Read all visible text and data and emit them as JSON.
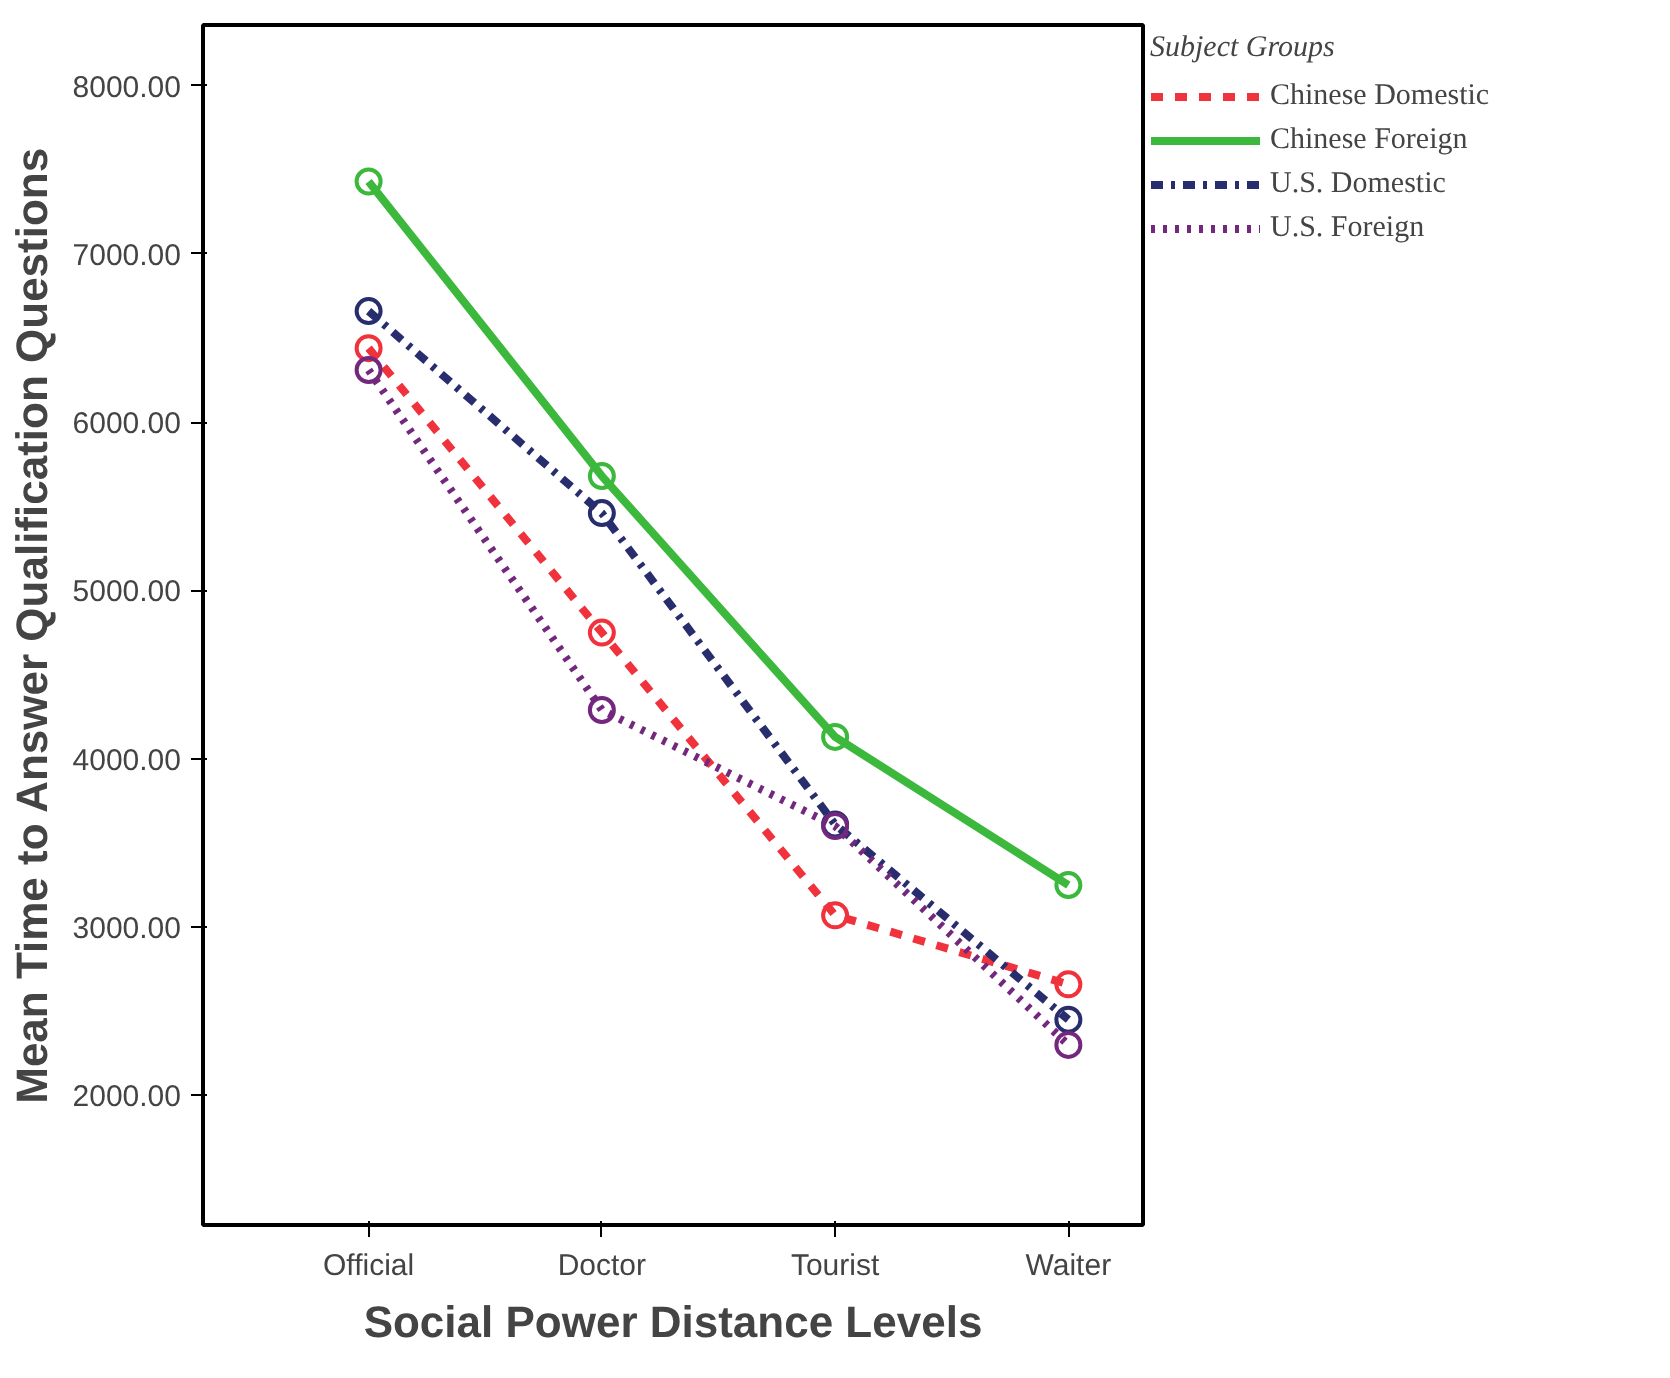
{
  "chart_data": {
    "type": "line",
    "xlabel": "Social Power Distance Levels",
    "ylabel": "Mean Time to Answer Qualification Questions",
    "legend_title": "Subject Groups",
    "categories": [
      "Official",
      "Doctor",
      "Tourist",
      "Waiter"
    ],
    "series": [
      {
        "name": "Chinese Domestic",
        "color": "#f0323c",
        "line_style": "dashed",
        "values": [
          6440,
          4750,
          3070,
          2660
        ]
      },
      {
        "name": "Chinese Foreign",
        "color": "#3cb93c",
        "line_style": "solid",
        "values": [
          7430,
          5680,
          4130,
          3250
        ]
      },
      {
        "name": "U.S. Domestic",
        "color": "#282d6e",
        "line_style": "dashdot",
        "values": [
          6660,
          5460,
          3610,
          2450
        ]
      },
      {
        "name": "U.S. Foreign",
        "color": "#73287d",
        "line_style": "dotted",
        "values": [
          6310,
          4290,
          3600,
          2300
        ]
      }
    ],
    "ylim": [
      1230,
      8360
    ],
    "yticks": [
      {
        "value": 2000,
        "label": "2000.00"
      },
      {
        "value": 3000,
        "label": "3000.00"
      },
      {
        "value": 4000,
        "label": "4000.00"
      },
      {
        "value": 5000,
        "label": "5000.00"
      },
      {
        "value": 6000,
        "label": "6000.00"
      },
      {
        "value": 7000,
        "label": "7000.00"
      },
      {
        "value": 8000,
        "label": "8000.00"
      }
    ],
    "grid": false,
    "legend": "top right",
    "marker": "circle"
  }
}
